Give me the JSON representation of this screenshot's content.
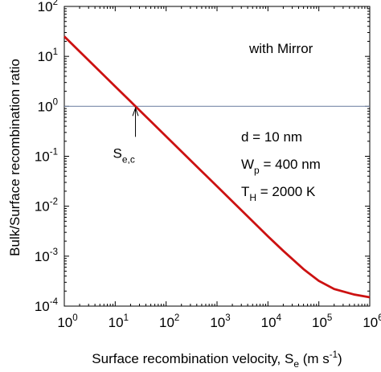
{
  "chart_data": {
    "type": "line",
    "xscale": "log",
    "yscale": "log",
    "xlim": [
      1,
      1000000
    ],
    "ylim": [
      0.0001,
      100
    ],
    "grid": false,
    "x_tick_labels": [
      {
        "base": "10",
        "exp": "0"
      },
      {
        "base": "10",
        "exp": "1"
      },
      {
        "base": "10",
        "exp": "2"
      },
      {
        "base": "10",
        "exp": "3"
      },
      {
        "base": "10",
        "exp": "4"
      },
      {
        "base": "10",
        "exp": "5"
      },
      {
        "base": "10",
        "exp": "6"
      }
    ],
    "y_tick_labels": [
      {
        "base": "10",
        "exp": "-4"
      },
      {
        "base": "10",
        "exp": "-3"
      },
      {
        "base": "10",
        "exp": "-2"
      },
      {
        "base": "10",
        "exp": "-1"
      },
      {
        "base": "10",
        "exp": "0"
      },
      {
        "base": "10",
        "exp": "1"
      },
      {
        "base": "10",
        "exp": "2"
      }
    ],
    "xlabel": {
      "text": "Surface recombination velocity, S",
      "sub": "e",
      "units": " (m s",
      "units_sup": "-1",
      "close": ")"
    },
    "ylabel": "Bulk/Surface recombination ratio",
    "series": [
      {
        "color": "#cc1111",
        "x": [
          1,
          2,
          5,
          10,
          20,
          25,
          50,
          100,
          200,
          500,
          1000,
          2000,
          5000,
          10000,
          20000,
          50000,
          100000,
          200000,
          500000,
          1000000
        ],
        "y": [
          25,
          12.5,
          5.0,
          2.5,
          1.25,
          1.0,
          0.5,
          0.25,
          0.125,
          0.05,
          0.025,
          0.0125,
          0.005,
          0.0025,
          0.00128,
          0.00055,
          0.00032,
          0.00022,
          0.00017,
          0.00015
        ]
      }
    ],
    "reference_line": {
      "y": 1,
      "color": "#7a8aa8"
    },
    "annotations": {
      "mirror": "with Mirror",
      "se_c": {
        "main": "S",
        "sub": "e,c",
        "x": 25,
        "y": 1
      },
      "params": [
        {
          "pre": "d = 10 nm",
          "sub": "",
          "post": ""
        },
        {
          "pre": "W",
          "sub": "p",
          "post": " = 400 nm"
        },
        {
          "pre": "T",
          "sub": "H",
          "post": " = 2000 K"
        }
      ]
    }
  }
}
